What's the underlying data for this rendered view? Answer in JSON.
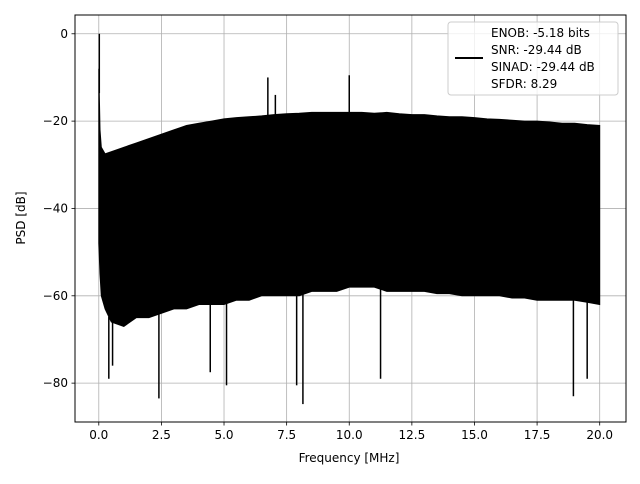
{
  "chart_data": {
    "type": "line",
    "title": "",
    "xlabel": "Frequency [MHz]",
    "ylabel": "PSD [dB]",
    "xlim": [
      -0.95,
      21.05
    ],
    "ylim": [
      -88.9,
      4.3
    ],
    "x_ticks": [
      0.0,
      2.5,
      5.0,
      7.5,
      10.0,
      12.5,
      15.0,
      17.5,
      20.0
    ],
    "x_tick_labels": [
      "0.0",
      "2.5",
      "5.0",
      "7.5",
      "10.0",
      "12.5",
      "15.0",
      "17.5",
      "20.0"
    ],
    "y_ticks": [
      0,
      -20,
      -40,
      -60,
      -80
    ],
    "y_tick_labels": [
      "0",
      "−20",
      "−40",
      "−60",
      "−80"
    ],
    "grid": true,
    "legend_position": "upper-right",
    "line_color": "#000000",
    "series": [
      {
        "x": [
          0.0,
          0.05,
          0.1,
          0.25,
          0.5,
          1.0,
          1.5,
          2.0,
          2.5,
          3.0,
          3.5,
          4.0,
          4.5,
          5.0,
          5.5,
          6.0,
          6.5,
          7.0,
          7.5,
          8.0,
          8.5,
          9.0,
          9.5,
          10.0,
          10.5,
          11.0,
          11.5,
          12.0,
          12.5,
          13.0,
          13.5,
          14.0,
          14.5,
          15.0,
          15.5,
          16.0,
          16.5,
          17.0,
          17.5,
          18.0,
          18.5,
          19.0,
          19.5,
          20.0
        ],
        "upper": [
          -8.0,
          -22.0,
          -26.0,
          -27.5,
          -27.0,
          -26.0,
          -25.0,
          -24.0,
          -23.0,
          -22.0,
          -21.0,
          -20.5,
          -20.0,
          -19.5,
          -19.2,
          -19.0,
          -18.8,
          -18.5,
          -18.3,
          -18.2,
          -18.0,
          -18.0,
          -18.0,
          -18.0,
          -18.0,
          -18.2,
          -18.0,
          -18.3,
          -18.5,
          -18.5,
          -18.8,
          -19.0,
          -19.0,
          -19.2,
          -19.5,
          -19.6,
          -19.8,
          -20.0,
          -20.0,
          -20.2,
          -20.5,
          -20.5,
          -20.8,
          -21.0
        ],
        "lower": [
          -48.0,
          -55.0,
          -60.0,
          -63.0,
          -66.0,
          -67.0,
          -65.0,
          -65.0,
          -64.0,
          -63.0,
          -63.0,
          -62.0,
          -62.0,
          -62.0,
          -61.0,
          -61.0,
          -60.0,
          -60.0,
          -60.0,
          -60.0,
          -59.0,
          -59.0,
          -59.0,
          -58.0,
          -58.0,
          -58.0,
          -59.0,
          -59.0,
          -59.0,
          -59.0,
          -59.5,
          -59.5,
          -60.0,
          -60.0,
          -60.0,
          -60.0,
          -60.5,
          -60.5,
          -61.0,
          -61.0,
          -61.0,
          -61.0,
          -61.5,
          -62.0
        ],
        "spikes": [
          {
            "x": 0.02,
            "y": 0.0
          },
          {
            "x": 6.75,
            "y": -10.0
          },
          {
            "x": 7.05,
            "y": -14.0
          },
          {
            "x": 10.0,
            "y": -9.5
          },
          {
            "x": 0.4,
            "y": -79.0
          },
          {
            "x": 0.55,
            "y": -76.0
          },
          {
            "x": 2.4,
            "y": -83.5
          },
          {
            "x": 4.45,
            "y": -77.5
          },
          {
            "x": 5.1,
            "y": -80.5
          },
          {
            "x": 7.9,
            "y": -80.5
          },
          {
            "x": 8.15,
            "y": -84.8
          },
          {
            "x": 11.25,
            "y": -79.0
          },
          {
            "x": 18.95,
            "y": -83.0
          },
          {
            "x": 19.5,
            "y": -79.0
          }
        ]
      }
    ],
    "legend": {
      "lines": [
        "ENOB: -5.18 bits",
        "SNR: -29.44 dB",
        "SINAD: -29.44 dB",
        "SFDR: 8.29"
      ]
    }
  }
}
